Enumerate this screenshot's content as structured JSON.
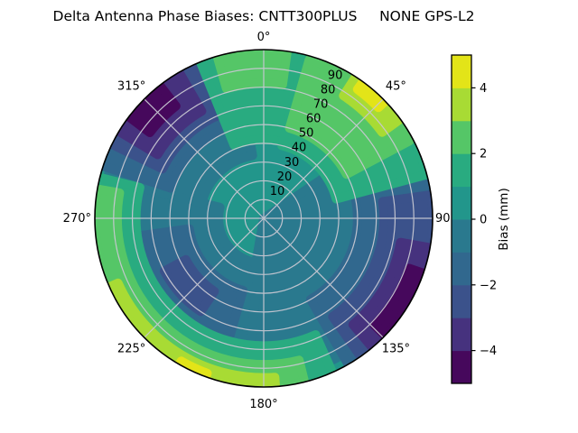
{
  "chart_data": {
    "type": "polar_contour",
    "title": "Delta Antenna Phase Biases: CNTT300PLUS     NONE GPS-L2",
    "angular_ticks": [
      {
        "deg": 0,
        "label": "0°"
      },
      {
        "deg": 45,
        "label": "45°"
      },
      {
        "deg": 90,
        "label": "90"
      },
      {
        "deg": 135,
        "label": "135°"
      },
      {
        "deg": 180,
        "label": "180°"
      },
      {
        "deg": 225,
        "label": "225°"
      },
      {
        "deg": 270,
        "label": "270°"
      },
      {
        "deg": 315,
        "label": "315°"
      }
    ],
    "radial_ticks": [
      10,
      20,
      30,
      40,
      50,
      60,
      70,
      80,
      90
    ],
    "radial_max": 90,
    "radial_label_azimuth_deg": 26.5,
    "levels_mm": [
      -5,
      -4,
      -3,
      -2,
      -1,
      0,
      1,
      2,
      3,
      4,
      5
    ],
    "band_colors": [
      "#46085c",
      "#46327e",
      "#3b528b",
      "#31688e",
      "#2a798e",
      "#22968b",
      "#29ab80",
      "#55c667",
      "#a8db34",
      "#e3e418"
    ],
    "grid_color": "#c8c8d2",
    "colorbar": {
      "label": "Bias (mm)",
      "ticks": [
        "4",
        "2",
        "0",
        "−2",
        "−4"
      ],
      "tick_values": [
        4,
        2,
        0,
        -2,
        -4
      ],
      "vmin": -5,
      "vmax": 5
    },
    "regions": [
      {
        "band": 4,
        "az1": 56,
        "az2": 190,
        "r0": 0,
        "r1": 84
      },
      {
        "band": 4,
        "az1": 186,
        "az2": 284,
        "r0": 24,
        "r1": 82
      },
      {
        "band": 4,
        "az1": 284,
        "az2": 350,
        "r0": 34,
        "r1": 86
      },
      {
        "band": 3,
        "az1": 70,
        "az2": 150,
        "r0": 50,
        "r1": 90
      },
      {
        "band": 3,
        "az1": 196,
        "az2": 262,
        "r0": 40,
        "r1": 67
      },
      {
        "band": 3,
        "az1": 288,
        "az2": 346,
        "r0": 52,
        "r1": 90
      },
      {
        "band": 2,
        "az1": 82,
        "az2": 145,
        "r0": 64,
        "r1": 90
      },
      {
        "band": 2,
        "az1": 214,
        "az2": 242,
        "r0": 47,
        "r1": 60
      },
      {
        "band": 2,
        "az1": 296,
        "az2": 338,
        "r0": 60,
        "r1": 90
      },
      {
        "band": 1,
        "az1": 100,
        "az2": 140,
        "r0": 74,
        "r1": 90
      },
      {
        "band": 1,
        "az1": 301,
        "az2": 330,
        "r0": 66,
        "r1": 90
      },
      {
        "band": 0,
        "az1": 109,
        "az2": 134,
        "r0": 82,
        "r1": 90
      },
      {
        "band": 0,
        "az1": 307,
        "az2": 322,
        "r0": 76,
        "r1": 90
      },
      {
        "band": 6,
        "az1": -22,
        "az2": 30,
        "r0": 42,
        "r1": 90
      },
      {
        "band": 6,
        "az1": 14,
        "az2": 75,
        "r0": 40,
        "r1": 90
      },
      {
        "band": 6,
        "az1": 156,
        "az2": 284,
        "r0": 68,
        "r1": 90
      },
      {
        "band": 7,
        "az1": 16,
        "az2": 62,
        "r0": 50,
        "r1": 88
      },
      {
        "band": 7,
        "az1": -16,
        "az2": 8,
        "r0": 72,
        "r1": 90
      },
      {
        "band": 7,
        "az1": 166,
        "az2": 280,
        "r0": 78,
        "r1": 90
      },
      {
        "band": 8,
        "az1": 33,
        "az2": 54,
        "r0": 78,
        "r1": 90
      },
      {
        "band": 8,
        "az1": 176,
        "az2": 246,
        "r0": 85,
        "r1": 90
      },
      {
        "band": 9,
        "az1": 36,
        "az2": 46,
        "r0": 85,
        "r1": 90
      },
      {
        "band": 9,
        "az1": 200,
        "az2": 210,
        "r0": 88,
        "r1": 90
      }
    ]
  }
}
